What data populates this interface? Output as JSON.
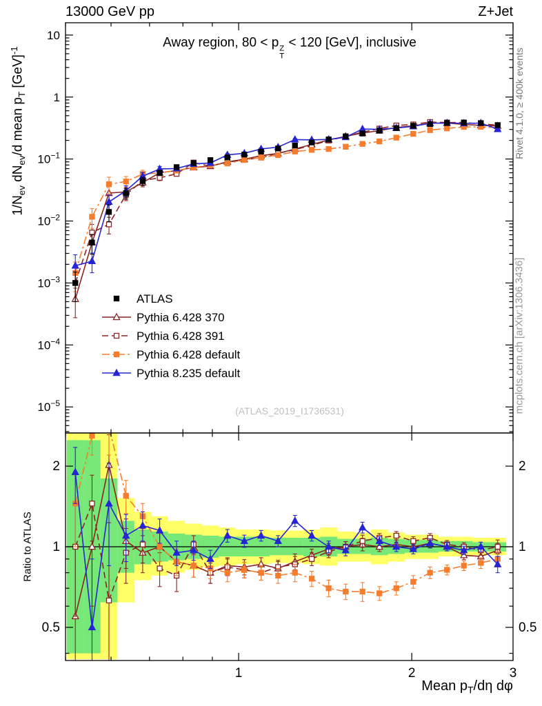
{
  "header": {
    "left": "13000 GeV pp",
    "right": "Z+Jet"
  },
  "plot_title": {
    "pre": "Away region, 80 < p",
    "sup": "Z",
    "sub": "T",
    "post": " < 120 [GeV], inclusive"
  },
  "watermark": "(ATLAS_2019_I1736531)",
  "side_texts": {
    "rivet": "Rivet 4.1.0, ≥ 400k events",
    "mcplots": "mcplots.cern.ch [arXiv:1306.3436]"
  },
  "axis_labels": {
    "y": {
      "a": "1/N",
      "a_sub": "ev",
      "b": " dN",
      "b_sub": "ev",
      "c": "/d mean p",
      "c_sub": "T",
      "d": " [GeV]",
      "d_sup": "-1"
    },
    "ratio": "Ratio to ATLAS",
    "x": {
      "a": "Mean p",
      "a_sub": "T",
      "b": "/dη dφ"
    }
  },
  "chart_data": {
    "type": "line",
    "x_range": [
      0.5,
      3.0
    ],
    "xticks": [
      1,
      2,
      3
    ],
    "xminors": [
      0.5,
      0.6,
      0.7,
      0.8,
      0.9
    ],
    "x": [
      0.52,
      0.556,
      0.595,
      0.637,
      0.681,
      0.729,
      0.78,
      0.835,
      0.893,
      0.956,
      1.023,
      1.094,
      1.171,
      1.253,
      1.34,
      1.434,
      1.535,
      1.642,
      1.757,
      1.88,
      2.012,
      2.152,
      2.303,
      2.464,
      2.637,
      2.821
    ],
    "main": {
      "y_range": [
        3.8e-06,
        15.8
      ],
      "ytick_exponents": [
        1,
        0,
        -1,
        -2,
        -3,
        -4,
        -5
      ]
    },
    "main_err_rel": [
      0.5,
      0.35,
      0.3,
      0.2,
      0.15,
      0.1,
      0.08,
      0.06,
      0.05,
      0.05,
      0.04,
      0.04,
      0.04,
      0.04,
      0.03,
      0.03,
      0.03,
      0.03,
      0.03,
      0.03,
      0.02,
      0.02,
      0.02,
      0.02,
      0.02,
      0.03
    ],
    "ratio_err": [
      0.45,
      0.4,
      0.6,
      0.22,
      0.15,
      0.12,
      0.1,
      0.08,
      0.07,
      0.06,
      0.055,
      0.05,
      0.05,
      0.06,
      0.05,
      0.05,
      0.045,
      0.055,
      0.04,
      0.04,
      0.04,
      0.04,
      0.035,
      0.035,
      0.04,
      0.06
    ],
    "ratio": {
      "y_range": [
        0.376,
        2.66
      ],
      "yticks": [
        0.5,
        1,
        2
      ],
      "yminors": [
        0.4,
        0.6,
        0.7,
        0.8,
        0.9
      ],
      "baseline": 1,
      "bands": {
        "yellow": {
          "color": "#ffff66",
          "ranges": [
            [
              0.38,
              2.66
            ],
            [
              0.38,
              2.66
            ],
            [
              0.38,
              2.66
            ],
            [
              0.62,
              1.52
            ],
            [
              0.75,
              1.35
            ],
            [
              0.78,
              1.3
            ],
            [
              0.8,
              1.25
            ],
            [
              0.82,
              1.22
            ],
            [
              0.84,
              1.2
            ],
            [
              0.85,
              1.18
            ],
            [
              0.86,
              1.16
            ],
            [
              0.86,
              1.16
            ],
            [
              0.87,
              1.15
            ],
            [
              0.87,
              1.15
            ],
            [
              0.86,
              1.16
            ],
            [
              0.85,
              1.18
            ],
            [
              0.88,
              1.14
            ],
            [
              0.88,
              1.13
            ],
            [
              0.86,
              1.16
            ],
            [
              0.88,
              1.13
            ],
            [
              0.9,
              1.11
            ],
            [
              0.9,
              1.11
            ],
            [
              0.92,
              1.09
            ],
            [
              0.92,
              1.09
            ],
            [
              0.93,
              1.08
            ],
            [
              0.93,
              1.08
            ]
          ]
        },
        "green": {
          "color": "#77e877",
          "ranges": [
            [
              0.4,
              2.5
            ],
            [
              0.4,
              2.5
            ],
            [
              0.62,
              1.8
            ],
            [
              0.8,
              1.25
            ],
            [
              0.86,
              1.16
            ],
            [
              0.88,
              1.14
            ],
            [
              0.89,
              1.12
            ],
            [
              0.9,
              1.11
            ],
            [
              0.91,
              1.1
            ],
            [
              0.92,
              1.09
            ],
            [
              0.92,
              1.09
            ],
            [
              0.92,
              1.09
            ],
            [
              0.93,
              1.08
            ],
            [
              0.93,
              1.08
            ],
            [
              0.92,
              1.08
            ],
            [
              0.92,
              1.09
            ],
            [
              0.94,
              1.07
            ],
            [
              0.94,
              1.07
            ],
            [
              0.93,
              1.08
            ],
            [
              0.94,
              1.07
            ],
            [
              0.95,
              1.06
            ],
            [
              0.95,
              1.06
            ],
            [
              0.96,
              1.05
            ],
            [
              0.96,
              1.05
            ],
            [
              0.96,
              1.04
            ],
            [
              0.96,
              1.04
            ]
          ]
        }
      }
    },
    "series": [
      {
        "id": "atlas",
        "label": "ATLAS",
        "color": "#000000",
        "marker": "square",
        "filled": true,
        "line": "none",
        "main_values": [
          0.001,
          0.0045,
          0.014,
          0.028,
          0.044,
          0.06,
          0.074,
          0.086,
          0.096,
          0.106,
          0.118,
          0.132,
          0.148,
          0.165,
          0.185,
          0.207,
          0.232,
          0.258,
          0.287,
          0.316,
          0.344,
          0.366,
          0.381,
          0.388,
          0.38,
          0.352
        ]
      },
      {
        "id": "py6-370",
        "label": "Pythia 6.428 370",
        "color": "#8b2323",
        "marker": "triangle",
        "filled": false,
        "line": "solid",
        "ratio": [
          0.55,
          1.0,
          2.02,
          1.05,
          0.95,
          1.0,
          0.88,
          0.85,
          0.8,
          0.85,
          0.84,
          0.86,
          0.83,
          0.88,
          0.93,
          0.98,
          1.0,
          1.02,
          1.0,
          1.02,
          1.0,
          1.03,
          1.0,
          0.93,
          0.92,
          0.97
        ]
      },
      {
        "id": "py6-391",
        "label": "Pythia 6.428 391",
        "color": "#8b2323",
        "marker": "square",
        "filled": false,
        "line": "dashed",
        "ratio": [
          1.0,
          1.45,
          0.63,
          0.95,
          1.02,
          0.83,
          0.78,
          1.02,
          0.8,
          0.84,
          0.82,
          0.8,
          0.84,
          0.86,
          0.9,
          0.96,
          1.0,
          1.05,
          1.08,
          1.1,
          1.05,
          1.08,
          1.02,
          1.0,
          0.97,
          1.0
        ]
      },
      {
        "id": "py6-default",
        "label": "Pythia 6.428 default",
        "color": "#f77d2e",
        "marker": "square",
        "filled": true,
        "line": "dashdot",
        "ratio": [
          1.45,
          2.6,
          2.8,
          1.55,
          1.3,
          1.0,
          0.88,
          0.85,
          0.83,
          0.8,
          0.82,
          0.8,
          0.78,
          0.8,
          0.76,
          0.7,
          0.68,
          0.68,
          0.67,
          0.7,
          0.74,
          0.8,
          0.82,
          0.85,
          0.87,
          0.9
        ]
      },
      {
        "id": "py8-default",
        "label": "Pythia 8.235 default",
        "color": "#2525d5",
        "marker": "triangle",
        "filled": true,
        "line": "solid",
        "ratio": [
          1.9,
          0.5,
          1.45,
          1.1,
          1.2,
          1.15,
          0.95,
          0.97,
          0.9,
          1.1,
          1.05,
          1.1,
          1.05,
          1.25,
          1.1,
          1.0,
          0.97,
          1.18,
          1.05,
          1.0,
          0.98,
          1.03,
          1.0,
          0.97,
          1.0,
          0.86
        ]
      }
    ]
  }
}
